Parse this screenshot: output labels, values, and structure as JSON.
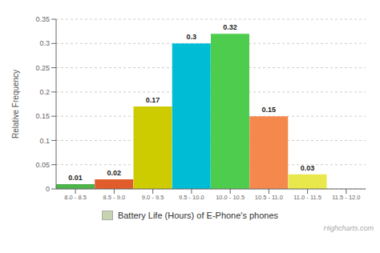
{
  "chart_data": {
    "type": "bar",
    "categories": [
      "8.0 - 8.5",
      "8.5 - 9.0",
      "9.0 - 9.5",
      "9.5 - 10.0",
      "10.0 - 10.5",
      "10.5 - 11.0",
      "11.0 - 11.5",
      "11.5 - 12.0"
    ],
    "series": [
      {
        "name": "Battery Life (Hours) of E-Phone's phones",
        "color": "#c8d4b0",
        "colors": [
          "#4db34d",
          "#e05c2a",
          "#cccc00",
          "#00bcd4",
          "#4dcc4d",
          "#f5884d",
          "#e8e84d",
          "#b8d96b"
        ],
        "values": [
          0.01,
          0.02,
          0.17,
          0.3,
          0.32,
          0.15,
          0.03,
          0.0
        ]
      }
    ],
    "ylabel": "Relative Frequency",
    "ylim": [
      0,
      0.35
    ],
    "yticks": [
      0,
      0.05,
      0.1,
      0.15,
      0.2,
      0.25,
      0.3,
      0.35
    ],
    "grid": true,
    "data_labels": true,
    "legend": "bottom",
    "annotations": [
      "Highcharts.com"
    ]
  }
}
